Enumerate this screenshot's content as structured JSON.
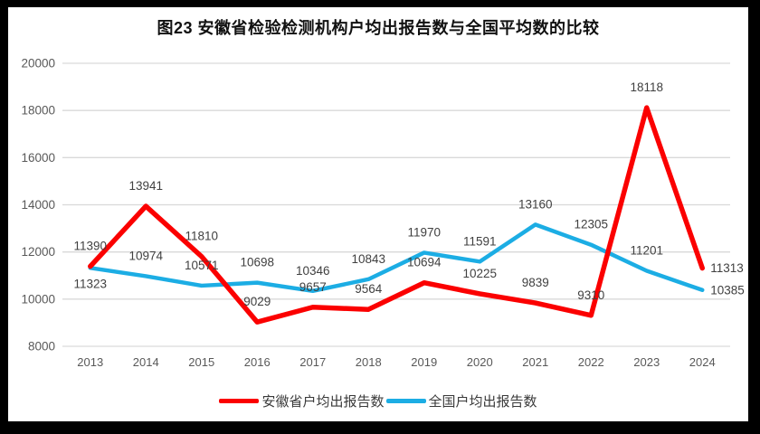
{
  "chart_data": {
    "type": "line",
    "title": "图23 安徽省检验检测机构户均出报告数与全国平均数的比较",
    "categories": [
      "2013",
      "2014",
      "2015",
      "2016",
      "2017",
      "2018",
      "2019",
      "2020",
      "2021",
      "2022",
      "2023",
      "2024"
    ],
    "series": [
      {
        "name": "安徽省户均出报告数",
        "color": "#fb0000",
        "values": [
          11390,
          13941,
          11810,
          9029,
          9657,
          9564,
          10694,
          10225,
          9839,
          9310,
          18118,
          11313
        ],
        "label_overrides": {
          "11": "right"
        }
      },
      {
        "name": "全国户均出报告数",
        "color": "#1cade4",
        "values": [
          11323,
          10974,
          10571,
          10698,
          10346,
          10843,
          11970,
          11591,
          13160,
          12305,
          11201,
          10385
        ],
        "label_overrides": {
          "0": "below",
          "11": "right"
        }
      }
    ],
    "ylim": [
      8000,
      20000
    ],
    "yticks": [
      8000,
      10000,
      12000,
      14000,
      16000,
      18000,
      20000
    ],
    "grid": true,
    "legend_position": "bottom",
    "colors": {
      "gridline": "#d9d9d9",
      "axis_text": "#595959",
      "data_label_text": "#404040"
    }
  }
}
